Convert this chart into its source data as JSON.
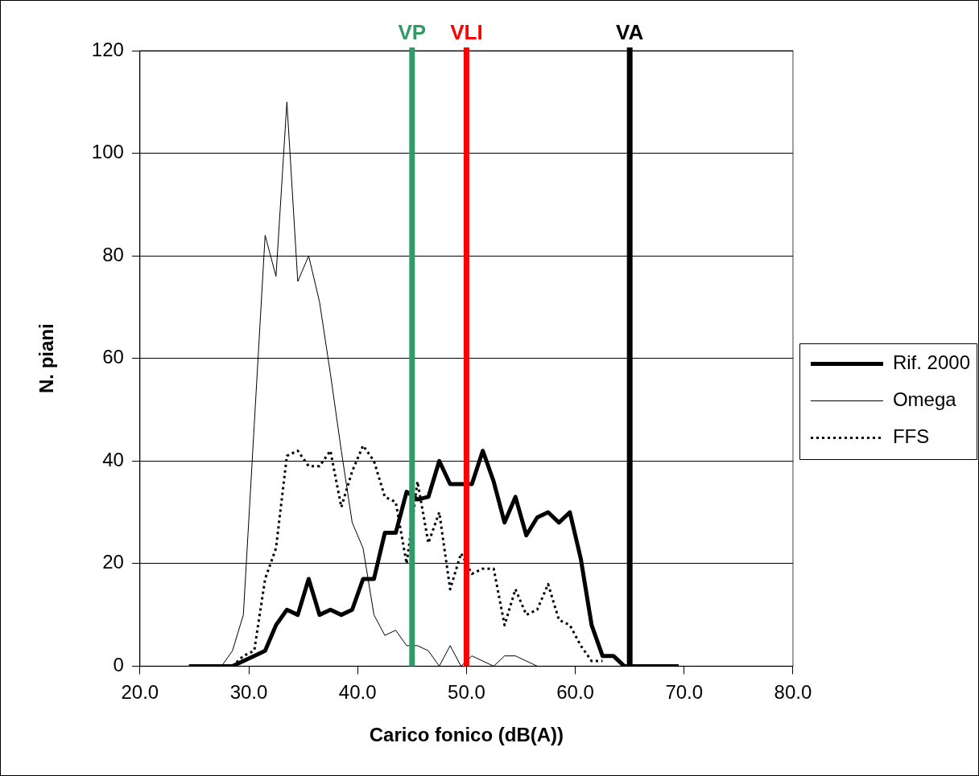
{
  "chart_data": {
    "type": "line",
    "xlabel": "Carico fonico (dB(A))",
    "ylabel": "N. piani",
    "x": [
      24.5,
      25.5,
      26.5,
      27.5,
      28.5,
      29.5,
      30.5,
      31.5,
      32.5,
      33.5,
      34.5,
      35.5,
      36.5,
      37.5,
      38.5,
      39.5,
      40.5,
      41.5,
      42.5,
      43.5,
      44.5,
      45.5,
      46.5,
      47.5,
      48.5,
      49.5,
      50.5,
      51.5,
      52.5,
      53.5,
      54.5,
      55.5,
      56.5,
      57.5,
      58.5,
      59.5,
      60.5,
      61.5,
      62.5,
      63.5,
      64.5,
      65.5,
      66.5,
      67.5,
      68.5,
      69.5
    ],
    "series": [
      {
        "name": "Rif. 2000",
        "color": "#000000",
        "line_style": "solid",
        "values": [
          0,
          0,
          0,
          0,
          0,
          1,
          2,
          3,
          8,
          11,
          10,
          17,
          10,
          11,
          10,
          11,
          17,
          17,
          26,
          26,
          34,
          32.5,
          33,
          40,
          35.5,
          35.5,
          35.5,
          42,
          36,
          28,
          33,
          25.5,
          29,
          30,
          28,
          30,
          21,
          8,
          2,
          2,
          0,
          0,
          0,
          0,
          0,
          0
        ]
      },
      {
        "name": "Omega",
        "color": "#000000",
        "line_style": "solid",
        "values": [
          null,
          null,
          null,
          0,
          3,
          10,
          47,
          84,
          76,
          110,
          75,
          80,
          71,
          57,
          42,
          28,
          23,
          10,
          6,
          7,
          4,
          4,
          3,
          0,
          4,
          0,
          2,
          1,
          0,
          2,
          2,
          1,
          0,
          null,
          null,
          null,
          null,
          null,
          null,
          null,
          null,
          null,
          null,
          null,
          null,
          null
        ]
      },
      {
        "name": "FFS",
        "color": "#000000",
        "line_style": "dotted",
        "values": [
          null,
          null,
          null,
          null,
          0,
          2,
          3,
          17,
          23,
          41,
          42,
          39,
          39,
          42,
          31,
          38,
          43,
          40,
          33,
          32,
          20,
          36,
          24,
          30,
          15,
          22,
          18,
          19,
          19,
          8,
          15,
          10,
          11,
          16,
          9,
          8,
          4,
          1,
          1,
          null,
          null,
          null,
          null,
          null,
          null,
          null
        ]
      }
    ],
    "xlim": [
      20,
      80
    ],
    "xticks": [
      {
        "value": 20,
        "label": "20.0"
      },
      {
        "value": 30,
        "label": "30.0"
      },
      {
        "value": 40,
        "label": "40.0"
      },
      {
        "value": 50,
        "label": "50.0"
      },
      {
        "value": 60,
        "label": "60.0"
      },
      {
        "value": 70,
        "label": "70.0"
      },
      {
        "value": 80,
        "label": "80.0"
      }
    ],
    "ylim": [
      0,
      120
    ],
    "yticks": [
      0,
      20,
      40,
      60,
      80,
      100,
      120
    ],
    "ref_lines": [
      {
        "axis": "x",
        "value": 45,
        "label": "VP",
        "color": "#339966"
      },
      {
        "axis": "x",
        "value": 50,
        "label": "VLI",
        "color": "#ff0000"
      },
      {
        "axis": "x",
        "value": 65,
        "label": "VA",
        "color": "#000000"
      }
    ],
    "grid": "y",
    "legend": "right",
    "marker": "none"
  }
}
